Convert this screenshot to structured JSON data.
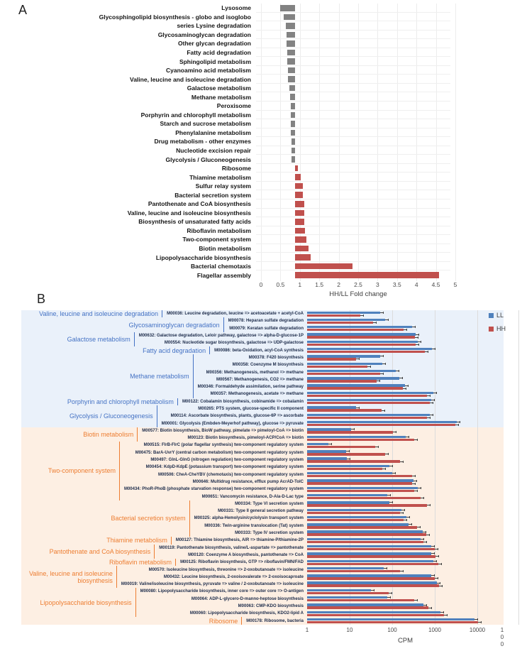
{
  "panels": {
    "a": "A",
    "b": "B"
  },
  "colors": {
    "ll_blue": "#4F81BD",
    "hh_red": "#C0504D",
    "gray_bar": "#828282",
    "blue_section_bg": "#EAF1FA",
    "orange_section_bg": "#FDEFE3",
    "blue_group_label": "#4472C4",
    "orange_group_label": "#ED7D31"
  },
  "chart_data": [
    {
      "id": "panel_a",
      "type": "bar",
      "orientation": "horizontal",
      "xlabel": "HH/LL Fold change",
      "xlim": [
        0,
        5
      ],
      "xtick_labels": [
        "0",
        "0.5",
        "1",
        "1.5",
        "2",
        "2.5",
        "3",
        "3.5",
        "4",
        "4.5",
        "5"
      ],
      "baseline": 1,
      "bar_color_rule": "gray below baseline 1, red above",
      "rows": [
        {
          "label": "Lysosome",
          "value": 0.62
        },
        {
          "label": "Glycosphingolipid biosynthesis - globo and isoglobo",
          "value": 0.72
        },
        {
          "label": "series Lysine degradation",
          "value": 0.77
        },
        {
          "label": "Glycosaminoglycan degradation",
          "value": 0.79
        },
        {
          "label": "Other glycan degradation",
          "value": 0.79
        },
        {
          "label": "Fatty acid degradation",
          "value": 0.8
        },
        {
          "label": "Sphingolipid metabolism",
          "value": 0.81
        },
        {
          "label": "Cyanoamino acid metabolism",
          "value": 0.82
        },
        {
          "label": "Valine, leucine and isoleucine degradation",
          "value": 0.82
        },
        {
          "label": "Galactose metabolism",
          "value": 0.86
        },
        {
          "label": "Methane metabolism",
          "value": 0.87
        },
        {
          "label": "Peroxisome",
          "value": 0.89
        },
        {
          "label": "Porphyrin and chlorophyll metabolism",
          "value": 0.89
        },
        {
          "label": "Starch and sucrose metabolism",
          "value": 0.9
        },
        {
          "label": "Phenylalanine metabolism",
          "value": 0.9
        },
        {
          "label": "Drug metabolism - other enzymes",
          "value": 0.91
        },
        {
          "label": "Nucleotide excision repair",
          "value": 0.91
        },
        {
          "label": "Glycolysis / Gluconeogenesis",
          "value": 0.92
        },
        {
          "label": "Ribosome",
          "value": 1.08
        },
        {
          "label": "Thiamine metabolism",
          "value": 1.15
        },
        {
          "label": "Sulfur relay system",
          "value": 1.2
        },
        {
          "label": "Bacterial secretion system",
          "value": 1.21
        },
        {
          "label": "Pantothenate and CoA biosynthesis",
          "value": 1.24
        },
        {
          "label": "Valine, leucine and isoleucine biosynthesis",
          "value": 1.25
        },
        {
          "label": "Biosynthesis of unsaturated fatty acids",
          "value": 1.25
        },
        {
          "label": "Riboflavin metabolism",
          "value": 1.26
        },
        {
          "label": "Two-component system",
          "value": 1.3
        },
        {
          "label": "Biotin metabolism",
          "value": 1.35
        },
        {
          "label": "Lipopolysaccharide biosynthesis",
          "value": 1.4
        },
        {
          "label": "Bacterial chemotaxis",
          "value": 2.48
        },
        {
          "label": "Flagellar assembly",
          "value": 4.7
        }
      ]
    },
    {
      "id": "panel_b",
      "type": "bar",
      "orientation": "horizontal",
      "xscale": "log",
      "xlabel": "CPM",
      "xticks": [
        1,
        10,
        100,
        1000,
        10000
      ],
      "x_overflow_tick": [
        "1",
        "0",
        "0"
      ],
      "series_names": [
        "LL",
        "HH"
      ],
      "groups": [
        {
          "label": "Valine, leucine and isoleucine degradation",
          "section": "blue",
          "modules": [
            {
              "label": "M00036: Leucine degradation, leucine => acetoacetate + acetyl-CoA",
              "LL": 52,
              "HH": 18
            }
          ]
        },
        {
          "label": "Glycosaminoglycan degradation",
          "section": "blue",
          "modules": [
            {
              "label": "M00078: Heparan sulfate degradation",
              "LL": 68,
              "HH": 35
            },
            {
              "label": "M00079: Keratan sulfate degradation",
              "LL": 295,
              "HH": 185
            }
          ]
        },
        {
          "label": "Galactose metabolism",
          "section": "blue",
          "modules": [
            {
              "label": "M00632: Galactose degradation, Leloir pathway, galactose => alpha-D-glucose-1P",
              "LL": 355,
              "HH": 345
            },
            {
              "label": "M00554: Nucleotide sugar biosynthesis, galactose => UDP-galactose",
              "LL": 400,
              "HH": 355
            }
          ]
        },
        {
          "label": "Fatty acid degradation",
          "section": "blue",
          "modules": [
            {
              "label": "M00086: beta-Oxidation, acyl-CoA synthesis",
              "LL": 870,
              "HH": 590
            }
          ]
        },
        {
          "label": "Methane metabolism",
          "section": "blue",
          "modules": [
            {
              "label": "M00378: F420 biosynthesis",
              "LL": 52,
              "HH": 14
            },
            {
              "label": "M00358: Coenzyme M biosynthesis",
              "LL": 59,
              "HH": 26
            },
            {
              "label": "M00356: Methanogenesis, methanol => methane",
              "LL": 120,
              "HH": 52
            },
            {
              "label": "M00567: Methanogenesis, CO2 => methane",
              "LL": 145,
              "HH": 43
            },
            {
              "label": "M00346: Formaldehyde assimilation, serine pathway",
              "LL": 200,
              "HH": 180
            },
            {
              "label": "M00357: Methanogenesis, acetate => methane",
              "LL": 930,
              "HH": 660
            }
          ]
        },
        {
          "label": "Porphyrin and chlorophyll metabolism",
          "section": "blue",
          "modules": [
            {
              "label": "M00122: Cobalamin biosynthesis, cobinamide => cobalamin",
              "LL": 820,
              "HH": 760
            }
          ]
        },
        {
          "label": "Glycolysis / Gluconeogenesis",
          "section": "blue",
          "modules": [
            {
              "label": "M00265: PTS system, glucose-specific II component",
              "LL": 14,
              "HH": 56
            },
            {
              "label": "M00114: Ascorbate biosynthesis, plants, glucose-6P => ascorbate",
              "LL": 760,
              "HH": 660
            },
            {
              "label": "M00001: Glycolysis (Embden-Meyerhof pathway), glucose => pyruvate",
              "LL": 3300,
              "HH": 3100
            }
          ]
        },
        {
          "label": "Biotin metabolism",
          "section": "orange",
          "modules": [
            {
              "label": "M00577: Biotin biosynthesis, BioW pathway, pimelate => pimeloyl-CoA => biotin",
              "LL": 11,
              "HH": 105
            },
            {
              "label": "M00123: Biotin biosynthesis, pimeloyl-ACP/CoA => biotin",
              "LL": 210,
              "HH": 330
            }
          ]
        },
        {
          "label": "Two-component system",
          "section": "orange",
          "modules": [
            {
              "label": "M00515: FlrB-FlrC (polar flagellar synthesis) two-component regulatory system",
              "LL": 3.2,
              "HH": 40
            },
            {
              "label": "M00475: BarA-UvrY (central carbon metabolism) two-component regulatory system",
              "LL": 8.3,
              "HH": 68
            },
            {
              "label": "M00497: GlnL-GlnG (nitrogen regulation) two-component regulatory system",
              "LL": 8.6,
              "HH": 152
            },
            {
              "label": "M00454: KdpD-KdpE (potassium transport) two-component regulatory system",
              "LL": 86,
              "HH": 59
            },
            {
              "label": "M00506: CheA-CheYBV (chemotaxis) two-component regulatory system",
              "LL": 100,
              "HH": 290
            },
            {
              "label": "M00646: Multidrug resistance, efflux pump AcrAD-TolC",
              "LL": 315,
              "HH": 295
            },
            {
              "label": "M00434: PhoR-PhoB (phosphate starvation response) two-component regulatory system",
              "LL": 400,
              "HH": 330
            },
            {
              "label": "M00651: Vancomycin resistance, D-Ala-D-Lac type",
              "LL": 76,
              "HH": 460
            }
          ]
        },
        {
          "label": "Bacterial secretion system",
          "section": "orange",
          "modules": [
            {
              "label": "M00334: Type VI secretion system",
              "LL": 86,
              "HH": 660
            },
            {
              "label": "M00331: Type II general secretion pathway",
              "LL": 163,
              "HH": 152
            },
            {
              "label": "M00325: alpha-Hemolysin/cyclolysin transport system",
              "LL": 213,
              "HH": 187
            },
            {
              "label": "M00336: Twin-arginine translocation (Tat) system",
              "LL": 240,
              "HH": 380
            },
            {
              "label": "M00333: Type IV secretion system",
              "LL": 520,
              "HH": 630
            }
          ]
        },
        {
          "label": "Thiamine metabolism",
          "section": "orange",
          "modules": [
            {
              "label": "M00127: Thiamine biosynthesis, AIR => thiamine-P/thiamine-2P",
              "LL": 460,
              "HH": 550
            }
          ]
        },
        {
          "label": "Pantothenate and CoA biosynthesis",
          "section": "orange",
          "modules": [
            {
              "label": "M00119: Pantothenate biosynthesis, valine/L-aspartate => pantothenate",
              "LL": 820,
              "HH": 1000
            },
            {
              "label": "M00120: Coenzyme A biosynthesis, pantothenate => CoA",
              "LL": 830,
              "HH": 1050
            }
          ]
        },
        {
          "label": "Riboflavin metabolism",
          "section": "orange",
          "modules": [
            {
              "label": "M00125: Riboflavin biosynthesis, GTP => riboflavin/FMN/FAD",
              "LL": 930,
              "HH": 1200
            }
          ]
        },
        {
          "label": "Valine, leucine and isoleucine biosynthesis",
          "section": "orange",
          "modules": [
            {
              "label": "M00570: Isoleucine biosynthesis, threonine => 2-oxobutanoate => isoleucine",
              "LL": 63,
              "HH": 155
            },
            {
              "label": "M00432: Leucine biosynthesis, 2-oxoisovalerate => 2-oxoisocaproate",
              "LL": 820,
              "HH": 1000
            },
            {
              "label": "M00019: Valine/isoleucine biosynthesis, pyruvate => valine / 2-oxobutanoate => isoleucine",
              "LL": 1120,
              "HH": 1280
            }
          ]
        },
        {
          "label": "Lipopolysaccharide biosynthesis",
          "section": "orange",
          "modules": [
            {
              "label": "M00080: Lipopolysaccharide biosynthesis, inner core => outer core => O-antigen",
              "LL": 32,
              "HH": 82
            },
            {
              "label": "M00064: ADP-L-glycero-D-manno-heptose biosynthesis",
              "LL": 76,
              "HH": 330
            },
            {
              "label": "M00063: CMP-KDO biosynthesis",
              "LL": 550,
              "HH": 720
            },
            {
              "label": "M00060: Lipopolysaccharide biosynthesis, KDO2-lipid A",
              "LL": 1350,
              "HH": 1650
            }
          ]
        },
        {
          "label": "Ribosome",
          "section": "orange",
          "modules": [
            {
              "label": "M00178: Ribosome, bacteria",
              "LL": 8700,
              "HH": 10500
            }
          ]
        }
      ]
    }
  ]
}
